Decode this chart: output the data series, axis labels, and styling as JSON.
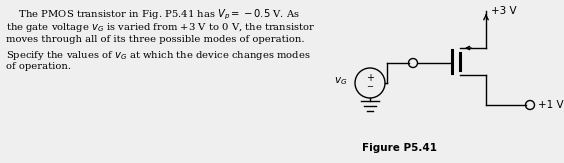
{
  "text_lines": [
    "    The PMOS transistor in Fig. P5.41 has $V_p = -0.5$ V. As",
    "the gate voltage $v_G$ is varied from +3 V to 0 V, the transistor",
    "moves through all of its three possible modes of operation.",
    "Specify the values of $v_G$ at which the device changes modes",
    "of operation."
  ],
  "figure_label": "Figure P5.41",
  "vdd_label": "+3 V",
  "vd_label": "+1 V",
  "vg_label": "$v_G$",
  "bg_color": "#efefef",
  "text_color": "#000000",
  "line_color": "#000000",
  "font_size_body": 7.2,
  "font_size_label": 7.5,
  "font_size_fig": 7.5
}
